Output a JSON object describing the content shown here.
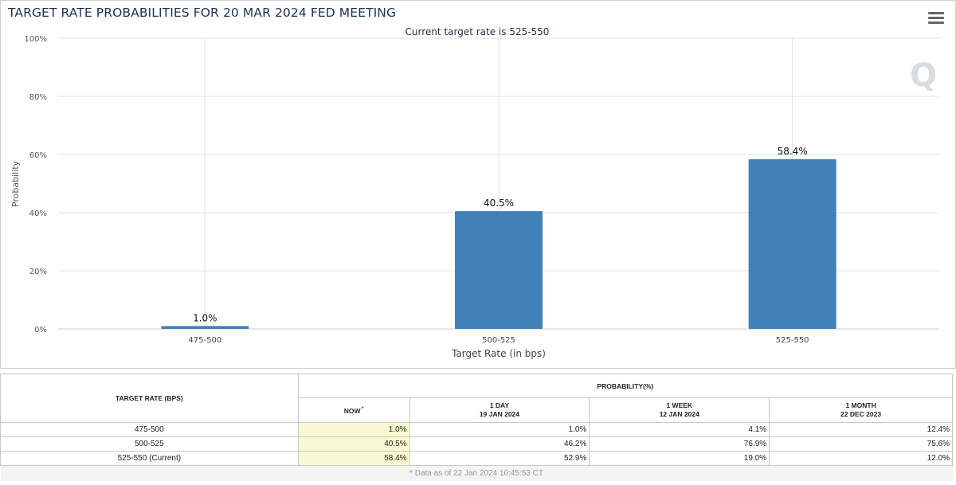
{
  "chart_data": {
    "type": "bar",
    "title": "TARGET RATE PROBABILITIES FOR 20 MAR 2024 FED MEETING",
    "subtitle": "Current target rate is 525-550",
    "xlabel": "Target Rate (in bps)",
    "ylabel": "Probability",
    "categories": [
      "475-500",
      "500-525",
      "525-550"
    ],
    "values": [
      1.0,
      40.5,
      58.4
    ],
    "data_labels": [
      "1.0%",
      "40.5%",
      "58.4%"
    ],
    "ylim": [
      0,
      100
    ],
    "yticks": [
      "0%",
      "20%",
      "40%",
      "60%",
      "80%",
      "100%"
    ],
    "ytick_values": [
      0,
      20,
      40,
      60,
      80,
      100
    ],
    "grid": true,
    "bar_color": "#4181b8"
  },
  "table": {
    "target_header": "TARGET RATE (BPS)",
    "probability_header": "PROBABILITY(%)",
    "columns": [
      {
        "line1": "NOW",
        "line2": "",
        "sup": "*"
      },
      {
        "line1": "1 DAY",
        "line2": "19 JAN 2024",
        "sup": ""
      },
      {
        "line1": "1 WEEK",
        "line2": "12 JAN 2024",
        "sup": ""
      },
      {
        "line1": "1 MONTH",
        "line2": "22 DEC 2023",
        "sup": ""
      }
    ],
    "rows": [
      {
        "rate": "475-500",
        "values": [
          "1.0%",
          "1.0%",
          "4.1%",
          "12.4%"
        ]
      },
      {
        "rate": "500-525",
        "values": [
          "40.5%",
          "46.2%",
          "76.9%",
          "75.6%"
        ]
      },
      {
        "rate": "525-550 (Current)",
        "values": [
          "58.4%",
          "52.9%",
          "19.0%",
          "12.0%"
        ]
      }
    ],
    "footnote": "* Data as of 22 Jan 2024 10:45:53 CT"
  },
  "colors": {
    "title": "#1f3350",
    "bar": "#4181b8",
    "now_highlight": "#fafad2",
    "grid": "#e0e0e0"
  },
  "icons": {
    "menu": "hamburger-menu-icon",
    "watermark": "q-logo-watermark-icon"
  }
}
